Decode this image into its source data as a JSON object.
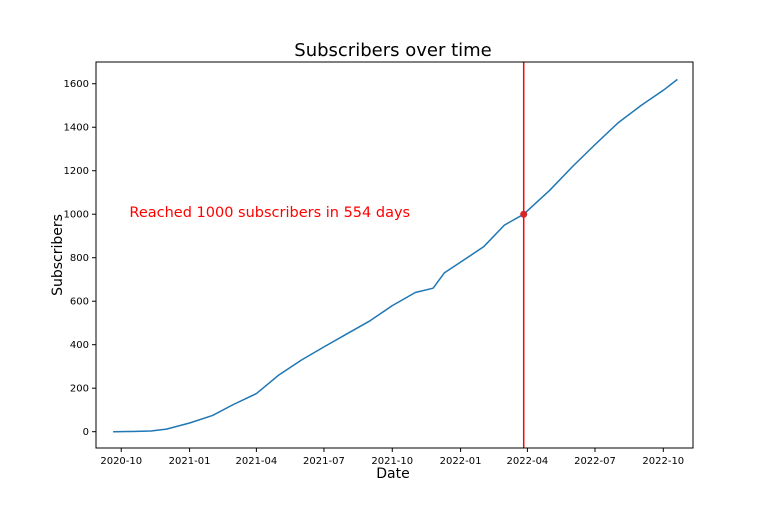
{
  "chart_data": {
    "type": "line",
    "title": "Subscribers over time",
    "xlabel": "Date",
    "ylabel": "Subscribers",
    "grid": false,
    "legend": "none",
    "xlim": [
      "2020-08-28",
      "2022-11-10"
    ],
    "ylim": [
      -75,
      1700
    ],
    "x_ticks": [
      {
        "date": "2020-10-01",
        "label": "2020-10"
      },
      {
        "date": "2021-01-01",
        "label": "2021-01"
      },
      {
        "date": "2021-04-01",
        "label": "2021-04"
      },
      {
        "date": "2021-07-01",
        "label": "2021-07"
      },
      {
        "date": "2021-10-01",
        "label": "2021-10"
      },
      {
        "date": "2022-01-01",
        "label": "2022-01"
      },
      {
        "date": "2022-04-01",
        "label": "2022-04"
      },
      {
        "date": "2022-07-01",
        "label": "2022-07"
      },
      {
        "date": "2022-10-01",
        "label": "2022-10"
      }
    ],
    "y_ticks": [
      0,
      200,
      400,
      600,
      800,
      1000,
      1200,
      1400,
      1600
    ],
    "series": [
      {
        "color": "#1f77b4",
        "points": [
          {
            "x": "2020-09-20",
            "y": 0
          },
          {
            "x": "2020-10-15",
            "y": 1
          },
          {
            "x": "2020-11-10",
            "y": 3
          },
          {
            "x": "2020-12-01",
            "y": 12
          },
          {
            "x": "2021-01-01",
            "y": 40
          },
          {
            "x": "2021-02-01",
            "y": 75
          },
          {
            "x": "2021-03-01",
            "y": 125
          },
          {
            "x": "2021-04-01",
            "y": 175
          },
          {
            "x": "2021-05-01",
            "y": 260
          },
          {
            "x": "2021-06-01",
            "y": 330
          },
          {
            "x": "2021-07-01",
            "y": 390
          },
          {
            "x": "2021-08-01",
            "y": 450
          },
          {
            "x": "2021-09-01",
            "y": 510
          },
          {
            "x": "2021-10-01",
            "y": 580
          },
          {
            "x": "2021-11-01",
            "y": 640
          },
          {
            "x": "2021-11-25",
            "y": 660
          },
          {
            "x": "2021-12-10",
            "y": 730
          },
          {
            "x": "2022-01-01",
            "y": 780
          },
          {
            "x": "2022-02-01",
            "y": 850
          },
          {
            "x": "2022-03-01",
            "y": 950
          },
          {
            "x": "2022-03-27",
            "y": 1000
          },
          {
            "x": "2022-05-01",
            "y": 1110
          },
          {
            "x": "2022-06-01",
            "y": 1220
          },
          {
            "x": "2022-07-01",
            "y": 1320
          },
          {
            "x": "2022-08-01",
            "y": 1420
          },
          {
            "x": "2022-09-01",
            "y": 1500
          },
          {
            "x": "2022-10-01",
            "y": 1570
          },
          {
            "x": "2022-10-20",
            "y": 1620
          }
        ]
      }
    ],
    "milestone": {
      "x": "2022-03-27",
      "y": 1000,
      "line_color": "#ff0000",
      "marker_color": "#d62728"
    },
    "annotation": {
      "text": "Reached 1000 subscribers in 554 days",
      "x": "2020-10-12",
      "y": 1010,
      "color": "#ff0000"
    }
  }
}
